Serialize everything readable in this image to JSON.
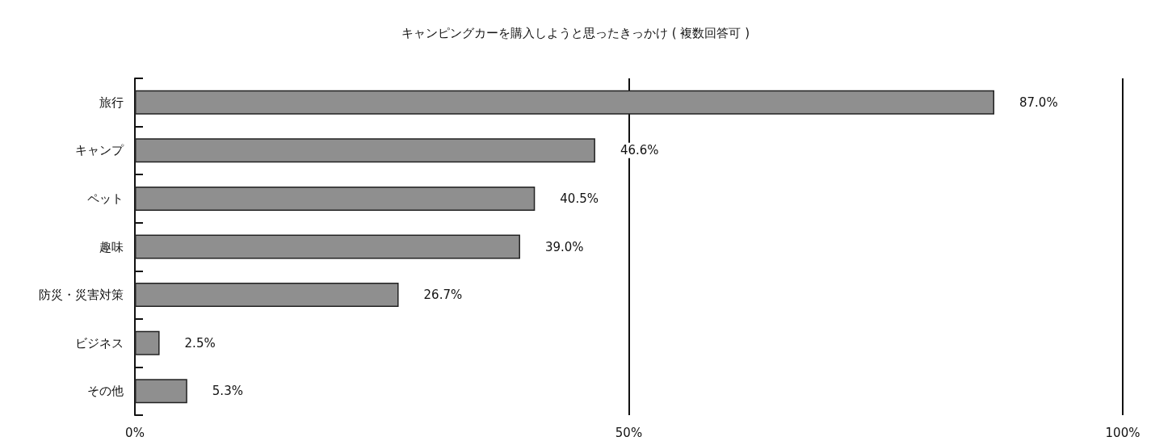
{
  "chart_data": {
    "type": "bar",
    "orientation": "horizontal",
    "title": "キャンピングカーを購入しようと思ったきっかけ ( 複数回答可 )",
    "categories": [
      "旅行",
      "キャンプ",
      "ペット",
      "趣味",
      "防災・災害対策",
      "ビジネス",
      "その他"
    ],
    "values": [
      87.0,
      46.6,
      40.5,
      39.0,
      26.7,
      2.5,
      5.3
    ],
    "value_labels": [
      "87.0%",
      "46.6%",
      "40.5%",
      "39.0%",
      "26.7%",
      "2.5%",
      "5.3%"
    ],
    "color": "#8f8f8f",
    "xlim": [
      0,
      100
    ],
    "xticks": [
      {
        "value": 0,
        "label": "0%"
      },
      {
        "value": 50,
        "label": "50%"
      },
      {
        "value": 100,
        "label": "100%"
      }
    ],
    "grid": "x"
  }
}
